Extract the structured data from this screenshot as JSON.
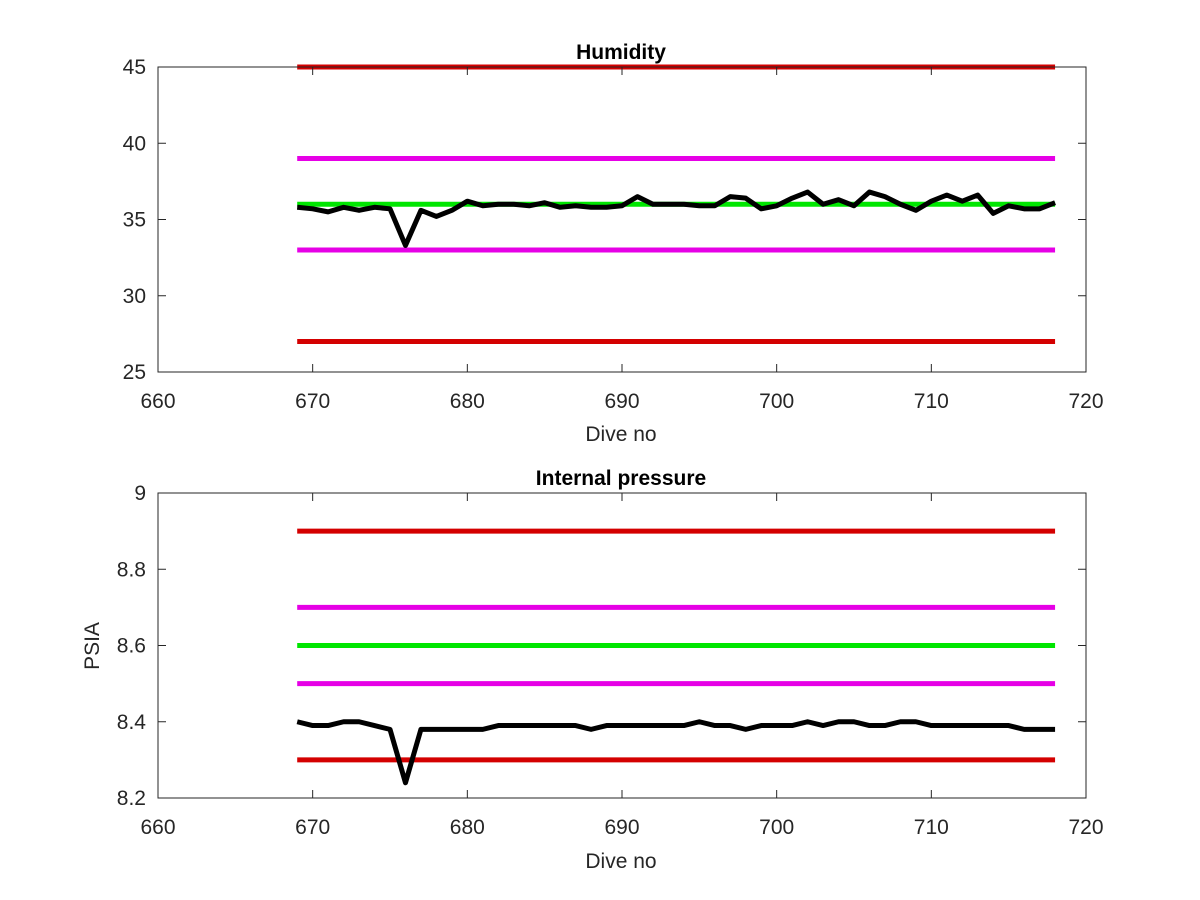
{
  "colors": {
    "background": "#ffffff",
    "axes": "#262626",
    "data_line": "#000000",
    "outer_limit": "#d40000",
    "inner_limit": "#e600e6",
    "target": "#00e600"
  },
  "chart_data": [
    {
      "type": "line",
      "title": "Humidity",
      "xlabel": "Dive no",
      "ylabel": "",
      "xlim": [
        660,
        720
      ],
      "ylim": [
        25,
        45
      ],
      "xticks": [
        660,
        670,
        680,
        690,
        700,
        710,
        720
      ],
      "yticks": [
        25,
        30,
        35,
        40,
        45
      ],
      "xtick_labels": [
        "660",
        "670",
        "680",
        "690",
        "700",
        "710",
        "720"
      ],
      "ytick_labels": [
        "25",
        "30",
        "35",
        "40",
        "45"
      ],
      "grid": false,
      "series": [
        {
          "role": "outer-limit",
          "color": "#d40000",
          "x": [
            669,
            718
          ],
          "y": [
            45,
            45
          ]
        },
        {
          "role": "inner-limit",
          "color": "#e600e6",
          "x": [
            669,
            718
          ],
          "y": [
            39,
            39
          ]
        },
        {
          "role": "target",
          "color": "#00e600",
          "x": [
            669,
            718
          ],
          "y": [
            36,
            36
          ]
        },
        {
          "role": "inner-limit",
          "color": "#e600e6",
          "x": [
            669,
            718
          ],
          "y": [
            33,
            33
          ]
        },
        {
          "role": "outer-limit",
          "color": "#d40000",
          "x": [
            669,
            718
          ],
          "y": [
            27,
            27
          ]
        },
        {
          "role": "measured",
          "color": "#000000",
          "x": [
            669,
            670,
            671,
            672,
            673,
            674,
            675,
            676,
            677,
            678,
            679,
            680,
            681,
            682,
            683,
            684,
            685,
            686,
            687,
            688,
            689,
            690,
            691,
            692,
            693,
            694,
            695,
            696,
            697,
            698,
            699,
            700,
            701,
            702,
            703,
            704,
            705,
            706,
            707,
            708,
            709,
            710,
            711,
            712,
            713,
            714,
            715,
            716,
            717,
            718
          ],
          "y": [
            35.8,
            35.7,
            35.5,
            35.8,
            35.6,
            35.8,
            35.7,
            33.3,
            35.6,
            35.2,
            35.6,
            36.2,
            35.9,
            36.0,
            36.0,
            35.9,
            36.1,
            35.8,
            35.9,
            35.8,
            35.8,
            35.9,
            36.5,
            36.0,
            36.0,
            36.0,
            35.9,
            35.9,
            36.5,
            36.4,
            35.7,
            35.9,
            36.4,
            36.8,
            36.0,
            36.3,
            35.9,
            36.8,
            36.5,
            36.0,
            35.6,
            36.2,
            36.6,
            36.2,
            36.6,
            35.4,
            35.9,
            35.7,
            35.7,
            36.1
          ]
        }
      ]
    },
    {
      "type": "line",
      "title": "Internal pressure",
      "xlabel": "Dive no",
      "ylabel": "PSIA",
      "xlim": [
        660,
        720
      ],
      "ylim": [
        8.2,
        9
      ],
      "xticks": [
        660,
        670,
        680,
        690,
        700,
        710,
        720
      ],
      "yticks": [
        8.2,
        8.4,
        8.6,
        8.8,
        9
      ],
      "xtick_labels": [
        "660",
        "670",
        "680",
        "690",
        "700",
        "710",
        "720"
      ],
      "ytick_labels": [
        "8.2",
        "8.4",
        "8.6",
        "8.8",
        "9"
      ],
      "grid": false,
      "series": [
        {
          "role": "outer-limit",
          "color": "#d40000",
          "x": [
            669,
            718
          ],
          "y": [
            8.9,
            8.9
          ]
        },
        {
          "role": "inner-limit",
          "color": "#e600e6",
          "x": [
            669,
            718
          ],
          "y": [
            8.7,
            8.7
          ]
        },
        {
          "role": "target",
          "color": "#00e600",
          "x": [
            669,
            718
          ],
          "y": [
            8.6,
            8.6
          ]
        },
        {
          "role": "inner-limit",
          "color": "#e600e6",
          "x": [
            669,
            718
          ],
          "y": [
            8.5,
            8.5
          ]
        },
        {
          "role": "outer-limit",
          "color": "#d40000",
          "x": [
            669,
            718
          ],
          "y": [
            8.3,
            8.3
          ]
        },
        {
          "role": "measured",
          "color": "#000000",
          "x": [
            669,
            670,
            671,
            672,
            673,
            674,
            675,
            676,
            677,
            678,
            679,
            680,
            681,
            682,
            683,
            684,
            685,
            686,
            687,
            688,
            689,
            690,
            691,
            692,
            693,
            694,
            695,
            696,
            697,
            698,
            699,
            700,
            701,
            702,
            703,
            704,
            705,
            706,
            707,
            708,
            709,
            710,
            711,
            712,
            713,
            714,
            715,
            716,
            717,
            718
          ],
          "y": [
            8.4,
            8.39,
            8.39,
            8.4,
            8.4,
            8.39,
            8.38,
            8.24,
            8.38,
            8.38,
            8.38,
            8.38,
            8.38,
            8.39,
            8.39,
            8.39,
            8.39,
            8.39,
            8.39,
            8.38,
            8.39,
            8.39,
            8.39,
            8.39,
            8.39,
            8.39,
            8.4,
            8.39,
            8.39,
            8.38,
            8.39,
            8.39,
            8.39,
            8.4,
            8.39,
            8.4,
            8.4,
            8.39,
            8.39,
            8.4,
            8.4,
            8.39,
            8.39,
            8.39,
            8.39,
            8.39,
            8.39,
            8.38,
            8.38,
            8.38
          ]
        }
      ]
    }
  ]
}
